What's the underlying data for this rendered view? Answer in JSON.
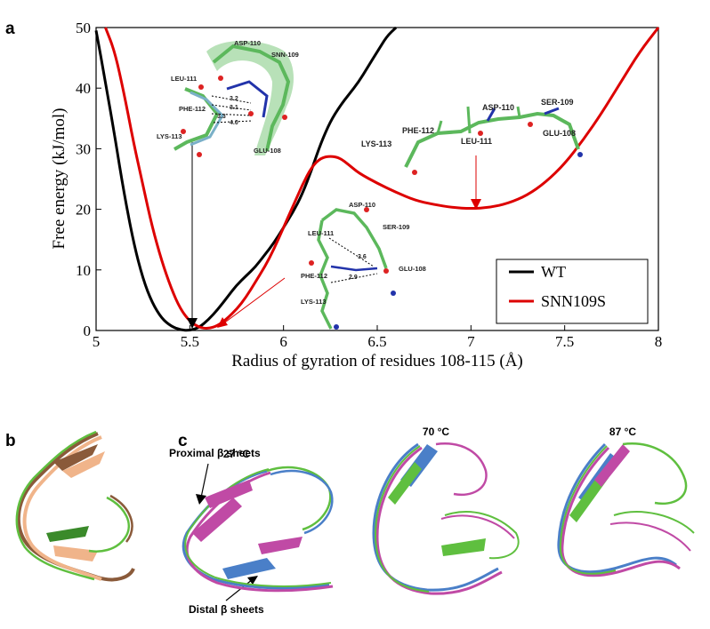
{
  "panel_labels": {
    "a": "a",
    "b": "b",
    "c": "c"
  },
  "chart_data": {
    "type": "line",
    "xlabel": "Radius of gyration of residues 108-115 (Å)",
    "ylabel": "Free energy (kJ/mol)",
    "xlim": [
      5,
      8
    ],
    "ylim": [
      0,
      50
    ],
    "x_ticks": [
      "5",
      "5.5",
      "6",
      "6.5",
      "7",
      "7.5",
      "8"
    ],
    "y_ticks": [
      "0",
      "10",
      "20",
      "30",
      "40",
      "50"
    ],
    "legend_position": "bottom-right",
    "series": [
      {
        "name": "WT",
        "color": "#000000",
        "x": [
          5.0,
          5.05,
          5.1,
          5.15,
          5.2,
          5.25,
          5.3,
          5.35,
          5.4,
          5.45,
          5.5,
          5.55,
          5.6,
          5.65,
          5.7,
          5.75,
          5.8,
          5.85,
          5.9,
          5.95,
          6.0,
          6.05,
          6.1,
          6.15,
          6.2,
          6.25,
          6.3,
          6.35,
          6.4,
          6.45,
          6.5,
          6.55,
          6.6
        ],
        "y": [
          49.5,
          41,
          32,
          22.5,
          14.5,
          8.5,
          4.5,
          2,
          0.7,
          0.1,
          0,
          0.5,
          1.8,
          3.5,
          5.5,
          7.5,
          9,
          10.5,
          12.5,
          14.5,
          17,
          19.5,
          22.5,
          26.5,
          31,
          34.5,
          37,
          39,
          41,
          43.5,
          46,
          48.5,
          50
        ]
      },
      {
        "name": "SNN109S",
        "color": "#dd0000",
        "x": [
          5.05,
          5.1,
          5.15,
          5.2,
          5.25,
          5.3,
          5.35,
          5.4,
          5.45,
          5.5,
          5.55,
          5.6,
          5.65,
          5.7,
          5.75,
          5.8,
          5.85,
          5.9,
          5.95,
          6.0,
          6.05,
          6.1,
          6.15,
          6.2,
          6.25,
          6.3,
          6.35,
          6.4,
          6.5,
          6.6,
          6.7,
          6.8,
          6.9,
          7.0,
          7.1,
          7.2,
          7.3,
          7.4,
          7.5,
          7.6,
          7.7,
          7.8,
          7.9,
          8.0
        ],
        "y": [
          50,
          46,
          39,
          31,
          24,
          17,
          11.5,
          7,
          3.5,
          1.5,
          0.5,
          0.3,
          0.8,
          2,
          3.5,
          5.5,
          8,
          10.5,
          13.5,
          17,
          20.5,
          24,
          27,
          28.5,
          28.8,
          28.5,
          27.3,
          26,
          24.3,
          22.8,
          21.5,
          20.8,
          20.3,
          20.1,
          20.3,
          21,
          22.3,
          24.5,
          27.5,
          31.5,
          36,
          41,
          46,
          50
        ]
      }
    ]
  },
  "insets": {
    "wt_residues": [
      "ASP-110",
      "SNN-109",
      "LEU-111",
      "PHE-112",
      "LYS-113",
      "GLU-108"
    ],
    "wt_distances": [
      "3.2",
      "3.1",
      "3.3",
      "4.0"
    ],
    "mid_residues": [
      "ASP-110",
      "SER-109",
      "LEU-111",
      "PHE-112",
      "LYS-113",
      "GLU-108"
    ],
    "mid_distances": [
      "3.6",
      "2.9"
    ],
    "ext_residues": [
      "SER-109",
      "ASP-110",
      "PHE-112",
      "LYS-113",
      "LEU-111",
      "GLU-108"
    ]
  },
  "panel_c": {
    "temperatures": [
      "27 °C",
      "70 °C",
      "87 °C"
    ],
    "proximal_label": "Proximal β sheets",
    "distal_label": "Distal β sheets"
  },
  "colors": {
    "wt": "#000000",
    "mutant": "#dd0000",
    "carbon": "#5cb85c",
    "nitrogen": "#2233aa",
    "oxygen": "#dd2222",
    "ribbon_green": "#5fbf3f",
    "ribbon_magenta": "#c04aa5",
    "ribbon_blue": "#4a7fc8",
    "ribbon_brown": "#8a5a3a",
    "ribbon_peach": "#f0b48a"
  }
}
